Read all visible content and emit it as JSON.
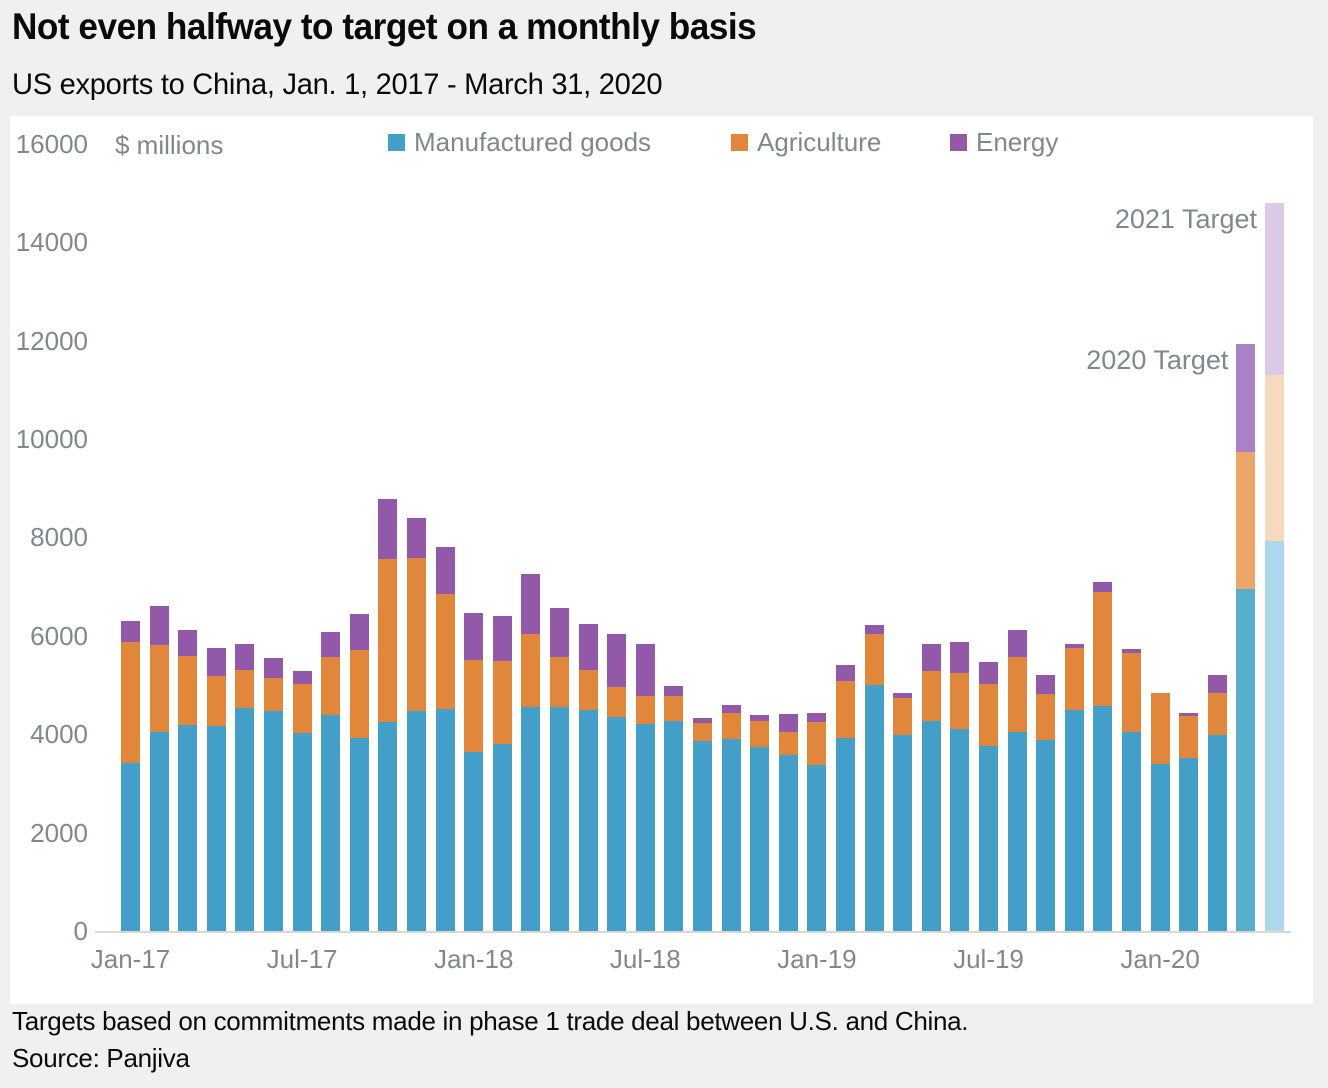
{
  "title": "Not even halfway to target on a monthly basis",
  "subtitle": "US exports to China, Jan. 1, 2017 - March 31, 2020",
  "footer": {
    "note": "Targets based on commitments made in phase 1 trade deal between U.S. and China.",
    "source": "Source: Panjiva"
  },
  "chart_data": {
    "type": "bar",
    "stacked": true,
    "title": "Not even halfway to target on a monthly basis",
    "subtitle": "US exports to China, Jan. 1, 2017 - March 31, 2020",
    "unit_label": "$ millions",
    "ylim": [
      0,
      16000
    ],
    "yticks": [
      0,
      2000,
      4000,
      6000,
      8000,
      10000,
      12000,
      14000,
      16000
    ],
    "grid": false,
    "legend_position": "top",
    "legend": [
      {
        "name": "Manufactured goods",
        "color": "#449FC8"
      },
      {
        "name": "Agriculture",
        "color": "#E1873C"
      },
      {
        "name": "Energy",
        "color": "#9159A8"
      }
    ],
    "series_colors": [
      "#449FC8",
      "#E1873C",
      "#9159A8"
    ],
    "target_colors": {
      "2020 Target": [
        "#55AECB",
        "#EDA66A",
        "#A881C6"
      ],
      "2021 Target": [
        "#ACD7ED",
        "#F7DABD",
        "#DCC9E8"
      ]
    },
    "categories": [
      "Jan-17",
      "Feb-17",
      "Mar-17",
      "Apr-17",
      "May-17",
      "Jun-17",
      "Jul-17",
      "Aug-17",
      "Sep-17",
      "Oct-17",
      "Nov-17",
      "Dec-17",
      "Jan-18",
      "Feb-18",
      "Mar-18",
      "Apr-18",
      "May-18",
      "Jun-18",
      "Jul-18",
      "Aug-18",
      "Sep-18",
      "Oct-18",
      "Nov-18",
      "Dec-18",
      "Jan-19",
      "Feb-19",
      "Mar-19",
      "Apr-19",
      "May-19",
      "Jun-19",
      "Jul-19",
      "Aug-19",
      "Sep-19",
      "Oct-19",
      "Nov-19",
      "Dec-19",
      "Jan-20",
      "Feb-20",
      "Mar-20",
      "2020 Target",
      "2021 Target"
    ],
    "xticks": [
      {
        "label": "Jan-17",
        "bar_index": 0
      },
      {
        "label": "Jul-17",
        "bar_index": 6
      },
      {
        "label": "Jan-18",
        "bar_index": 12
      },
      {
        "label": "Jul-18",
        "bar_index": 18
      },
      {
        "label": "Jan-19",
        "bar_index": 24
      },
      {
        "label": "Jul-19",
        "bar_index": 30
      },
      {
        "label": "Jan-20",
        "bar_index": 36
      }
    ],
    "series": [
      {
        "name": "Manufactured goods",
        "values": [
          3415,
          4040,
          4190,
          4170,
          4535,
          4470,
          4025,
          4390,
          3925,
          4250,
          4470,
          4515,
          3640,
          3800,
          4555,
          4555,
          4495,
          4350,
          4210,
          4270,
          3865,
          3910,
          3740,
          3570,
          3375,
          3925,
          5000,
          3985,
          4270,
          4105,
          3760,
          4050,
          3885,
          4495,
          4575,
          4045,
          3395,
          3515,
          3985,
          6950,
          7930
        ]
      },
      {
        "name": "Agriculture",
        "values": [
          2460,
          1780,
          1400,
          1015,
          770,
          675,
          995,
          1180,
          1785,
          3310,
          3120,
          2335,
          1870,
          1690,
          1485,
          1015,
          810,
          610,
          570,
          500,
          355,
          520,
          530,
          480,
          875,
          1155,
          1040,
          750,
          1015,
          1140,
          1260,
          1520,
          935,
          1260,
          2320,
          1605,
          1445,
          855,
          855,
          2790,
          3370
        ]
      },
      {
        "name": "Energy",
        "values": [
          425,
          785,
          530,
          570,
          530,
          405,
          265,
          510,
          735,
          1220,
          805,
          960,
          955,
          915,
          1220,
          995,
          935,
          1080,
          1055,
          210,
          100,
          170,
          120,
          360,
          180,
          330,
          180,
          105,
          550,
          630,
          450,
          540,
          385,
          80,
          200,
          80,
          0,
          60,
          365,
          2190,
          3500
        ]
      }
    ],
    "annotations": [
      {
        "text": "2020 Target",
        "bar_index": 39
      },
      {
        "text": "2021 Target",
        "bar_index": 40
      }
    ]
  },
  "colors": {
    "page_bg": "#F1F0EE",
    "panel_bg": "#FFFFFF",
    "axis_text": "#7E898E",
    "axis_line": "#D9D7D3"
  }
}
